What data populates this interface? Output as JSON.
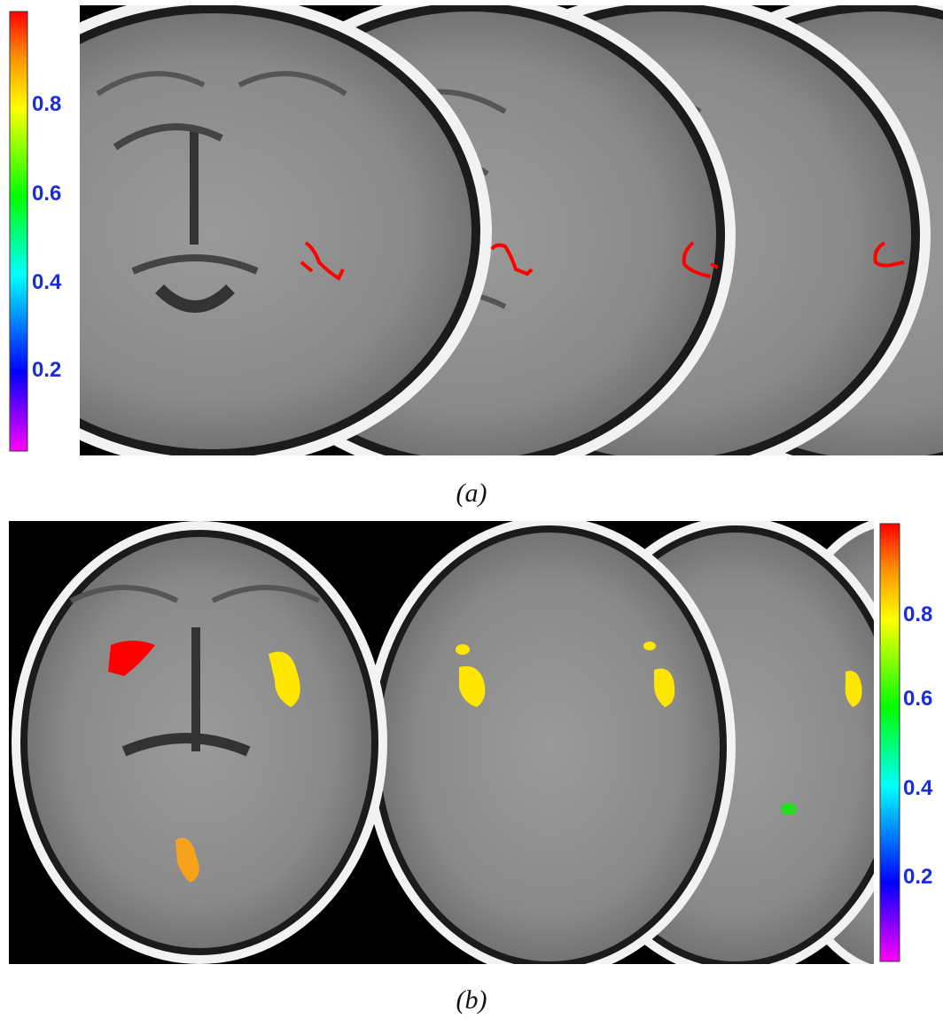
{
  "figure": {
    "panel_a": {
      "caption": "(a)",
      "colorbar_ticks": [
        "0.8",
        "0.6",
        "0.4",
        "0.2"
      ],
      "colorbar_colors": [
        "#ff00ff",
        "#0000ff",
        "#00ffff",
        "#00ff00",
        "#ffff00",
        "#ff8c00",
        "#ff0000"
      ],
      "slices": 4,
      "overlay_color": "#ff0000"
    },
    "panel_b": {
      "caption": "(b)",
      "colorbar_ticks": [
        "0.8",
        "0.6",
        "0.4",
        "0.2"
      ],
      "colorbar_colors": [
        "#ff00ff",
        "#0000ff",
        "#00ffff",
        "#00ff00",
        "#ffff00",
        "#ff8c00",
        "#ff0000"
      ],
      "slices": 4,
      "overlay_colors": {
        "high": "#ff0000",
        "yellow": "#ffe600",
        "orange": "#f7a21b",
        "green": "#22dd22"
      }
    }
  }
}
